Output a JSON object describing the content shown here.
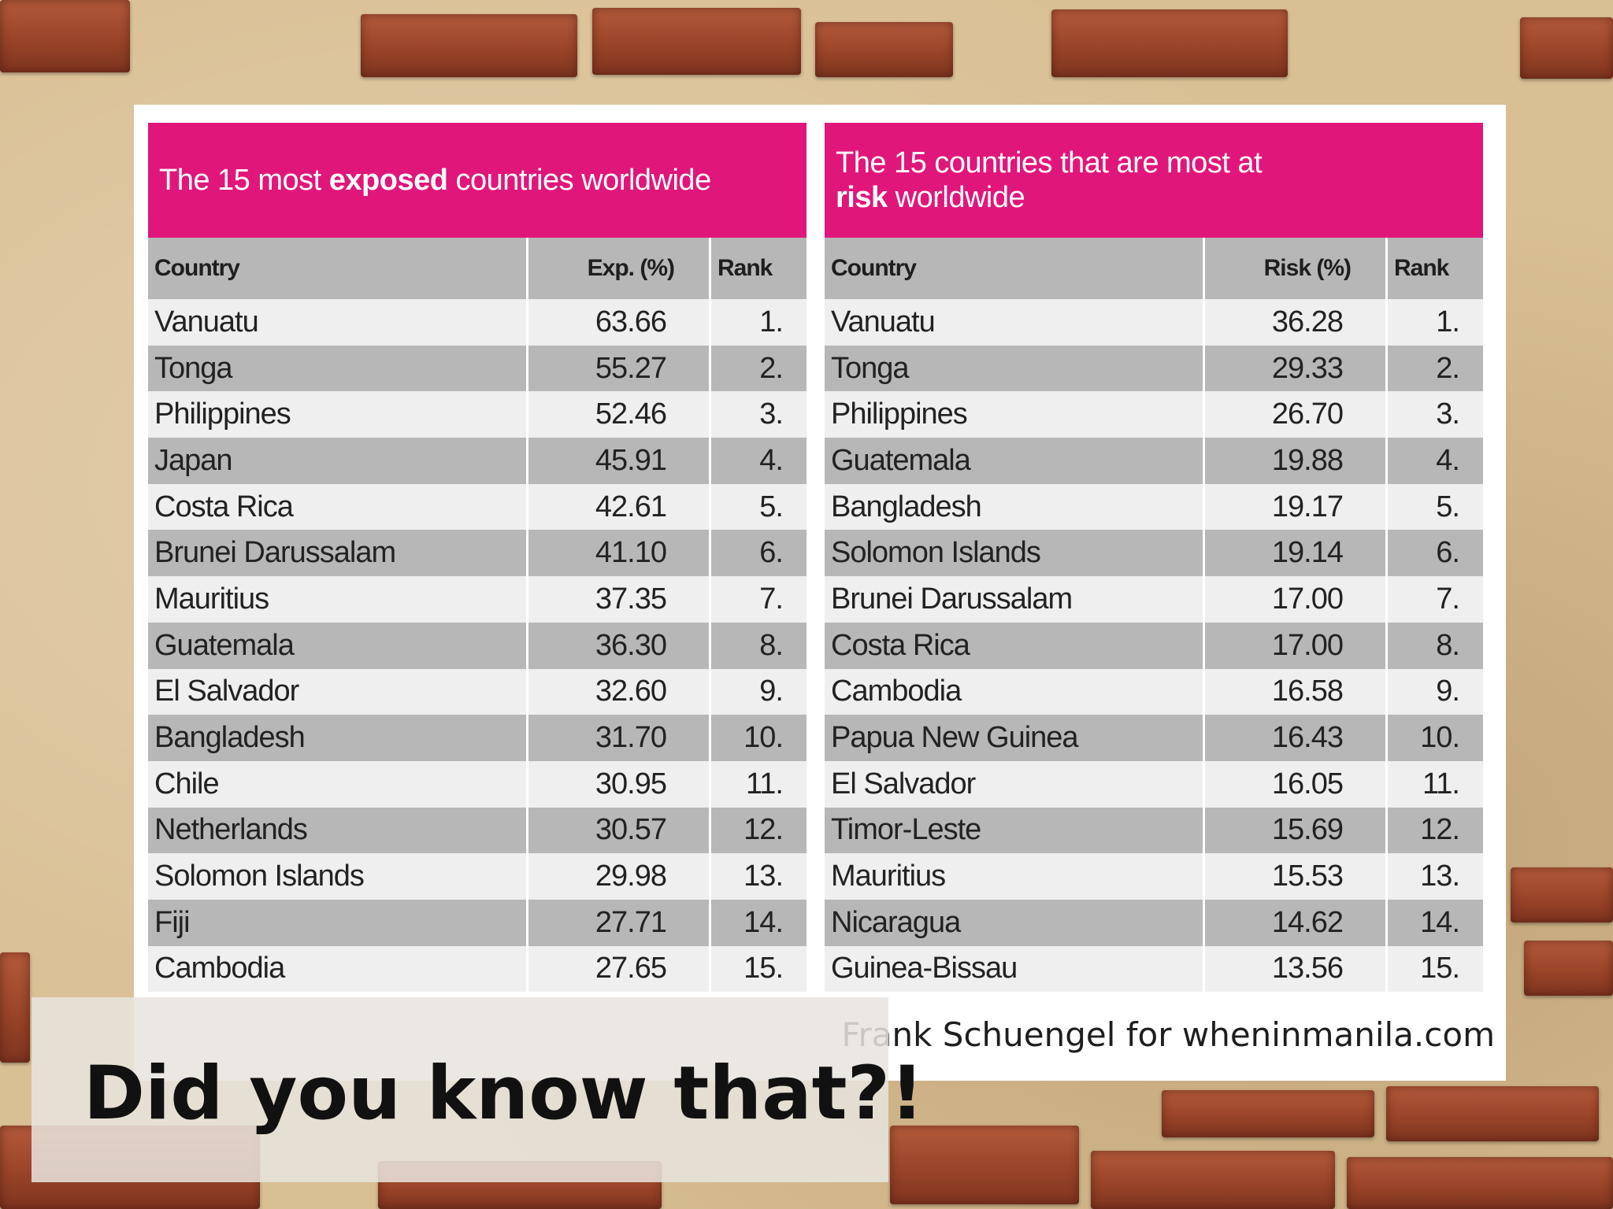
{
  "left_table": {
    "title_pre": "The 15 most ",
    "title_bold": "exposed",
    "title_post": " countries worldwide",
    "columns": [
      "Country",
      "Exp. (%)",
      "Rank"
    ],
    "rows": [
      {
        "country": "Vanuatu",
        "value": "63.66",
        "rank": "1."
      },
      {
        "country": "Tonga",
        "value": "55.27",
        "rank": "2."
      },
      {
        "country": "Philippines",
        "value": "52.46",
        "rank": "3."
      },
      {
        "country": "Japan",
        "value": "45.91",
        "rank": "4."
      },
      {
        "country": "Costa Rica",
        "value": "42.61",
        "rank": "5."
      },
      {
        "country": "Brunei Darussalam",
        "value": "41.10",
        "rank": "6."
      },
      {
        "country": "Mauritius",
        "value": "37.35",
        "rank": "7."
      },
      {
        "country": "Guatemala",
        "value": "36.30",
        "rank": "8."
      },
      {
        "country": "El Salvador",
        "value": "32.60",
        "rank": "9."
      },
      {
        "country": "Bangladesh",
        "value": "31.70",
        "rank": "10."
      },
      {
        "country": "Chile",
        "value": "30.95",
        "rank": "11."
      },
      {
        "country": "Netherlands",
        "value": "30.57",
        "rank": "12."
      },
      {
        "country": "Solomon Islands",
        "value": "29.98",
        "rank": "13."
      },
      {
        "country": "Fiji",
        "value": "27.71",
        "rank": "14."
      },
      {
        "country": "Cambodia",
        "value": "27.65",
        "rank": "15."
      }
    ]
  },
  "right_table": {
    "title_pre": "The 15 countries that are most at ",
    "title_bold": "risk",
    "title_post": " worldwide",
    "columns": [
      "Country",
      "Risk (%)",
      "Rank"
    ],
    "rows": [
      {
        "country": "Vanuatu",
        "value": "36.28",
        "rank": "1."
      },
      {
        "country": "Tonga",
        "value": "29.33",
        "rank": "2."
      },
      {
        "country": "Philippines",
        "value": "26.70",
        "rank": "3."
      },
      {
        "country": "Guatemala",
        "value": "19.88",
        "rank": "4."
      },
      {
        "country": "Bangladesh",
        "value": "19.17",
        "rank": "5."
      },
      {
        "country": "Solomon Islands",
        "value": "19.14",
        "rank": "6."
      },
      {
        "country": "Brunei Darussalam",
        "value": "17.00",
        "rank": "7."
      },
      {
        "country": "Costa Rica",
        "value": "17.00",
        "rank": "8."
      },
      {
        "country": "Cambodia",
        "value": "16.58",
        "rank": "9."
      },
      {
        "country": "Papua New Guinea",
        "value": "16.43",
        "rank": "10."
      },
      {
        "country": "El Salvador",
        "value": "16.05",
        "rank": "11."
      },
      {
        "country": "Timor-Leste",
        "value": "15.69",
        "rank": "12."
      },
      {
        "country": "Mauritius",
        "value": "15.53",
        "rank": "13."
      },
      {
        "country": "Nicaragua",
        "value": "14.62",
        "rank": "14."
      },
      {
        "country": "Guinea-Bissau",
        "value": "13.56",
        "rank": "15."
      }
    ]
  },
  "credit": "Frank Schuengel for wheninmanila.com",
  "caption": "Did you know that?!",
  "colors": {
    "header_magenta": "#e0167b",
    "row_light": "#efefef",
    "row_dark": "#b7b7b7",
    "brick": "#9a4429",
    "wall": "#d9bf94"
  }
}
